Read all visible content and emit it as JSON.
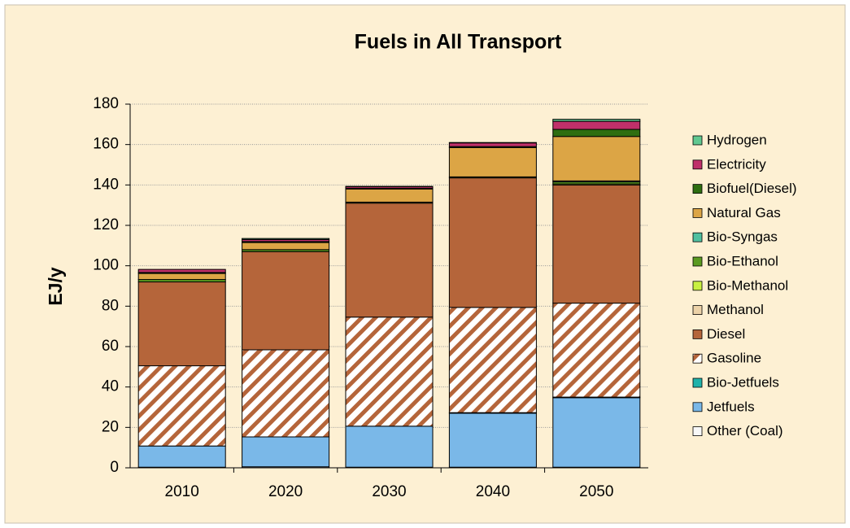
{
  "chart_data": {
    "type": "stacked_bar",
    "title": "Fuels in All Transport",
    "y_label": "EJ/y",
    "categories": [
      "2010",
      "2020",
      "2030",
      "2040",
      "2050"
    ],
    "series": [
      {
        "name": "Other (Coal)",
        "color": "#f8f8f8",
        "values": [
          0.3,
          0.5,
          0.3,
          0.3,
          0.3
        ]
      },
      {
        "name": "Jetfuels",
        "color": "#7ab8e8",
        "values": [
          10.5,
          14.8,
          20.3,
          26.7,
          34.4
        ]
      },
      {
        "name": "Bio-Jetfuels",
        "color": "#20b2aa",
        "values": [
          0,
          0,
          0,
          0.3,
          0.3
        ]
      },
      {
        "name": "Gasoline",
        "color": "#b5653a",
        "pattern": "hatch",
        "values": [
          39.7,
          43.1,
          54,
          52.1,
          46.5
        ]
      },
      {
        "name": "Diesel",
        "color": "#b5653a",
        "values": [
          41.5,
          48.6,
          56.4,
          64.1,
          58.5
        ]
      },
      {
        "name": "Methanol",
        "color": "#ecd2a8",
        "values": [
          0,
          0,
          0,
          0,
          0
        ]
      },
      {
        "name": "Bio-Methanol",
        "color": "#c8f040",
        "values": [
          0,
          0,
          0,
          0,
          0.5
        ]
      },
      {
        "name": "Bio-Ethanol",
        "color": "#5a9a20",
        "values": [
          1.2,
          1,
          0.5,
          0.5,
          1
        ]
      },
      {
        "name": "Bio-Syngas",
        "color": "#50c0a0",
        "values": [
          0,
          0,
          0,
          0,
          0.5
        ]
      },
      {
        "name": "Natural Gas",
        "color": "#dca545",
        "values": [
          3,
          3.5,
          6.5,
          14.5,
          22
        ]
      },
      {
        "name": "Biofuel(Diesel)",
        "color": "#2e6e10",
        "values": [
          0.5,
          0.5,
          0.3,
          0.5,
          3.5
        ]
      },
      {
        "name": "Electricity",
        "color": "#c0306a",
        "values": [
          1.5,
          1,
          0.8,
          1.8,
          4
        ]
      },
      {
        "name": "Hydrogen",
        "color": "#60c890",
        "values": [
          0,
          0.5,
          0.2,
          0.2,
          1
        ]
      }
    ],
    "ylim": [
      0,
      180
    ],
    "yticks": [
      0,
      20,
      40,
      60,
      80,
      100,
      120,
      140,
      160,
      180
    ],
    "grid": true,
    "legend": "right"
  }
}
